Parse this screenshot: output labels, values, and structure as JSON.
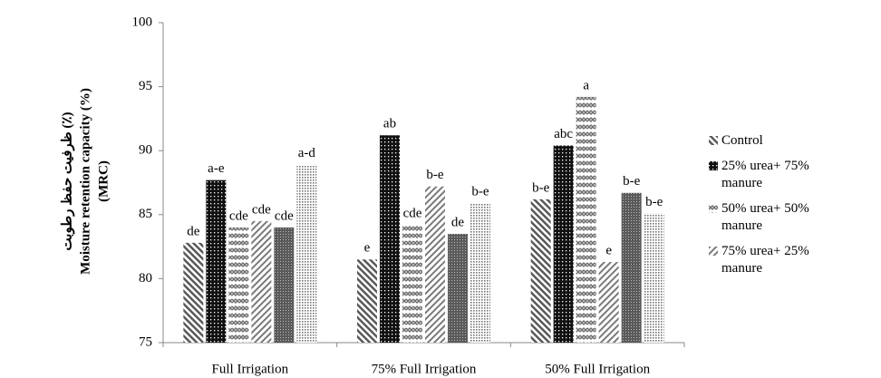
{
  "chart_data": {
    "type": "bar",
    "y_label": [
      "ظرفیت حفظ رطوبت (٪)",
      "Moisture retention capacity (%)",
      "(MRC)"
    ],
    "categories": [
      "Full Irrigation",
      "75% Full Irrigation",
      "50% Full Irrigation"
    ],
    "series": [
      {
        "name": "Control",
        "color": "#595959",
        "values": [
          82.8,
          81.5,
          86.2
        ],
        "labels": [
          "de",
          "e",
          "b-e"
        ]
      },
      {
        "name": "25% urea+ 75% manure",
        "color": "#111111",
        "values": [
          87.7,
          91.2,
          90.4
        ],
        "labels": [
          "a-e",
          "ab",
          "abc"
        ]
      },
      {
        "name": "50% urea+ 50% manure",
        "color": "#6e6e6e",
        "values": [
          84.0,
          84.2,
          94.2
        ],
        "labels": [
          "cde",
          "cde",
          "a"
        ]
      },
      {
        "name": "75% urea+ 25% manure",
        "color": "#7a7a7a",
        "values": [
          84.5,
          87.2,
          81.3
        ],
        "labels": [
          "cde",
          "b-e",
          "e"
        ]
      },
      {
        "color": "#5a5a5a",
        "values": [
          84.0,
          83.5,
          86.7
        ],
        "labels": [
          "cde",
          "de",
          "b-e"
        ]
      },
      {
        "color": "#777777",
        "values": [
          88.9,
          85.9,
          85.1
        ],
        "labels": [
          "a-d",
          "b-e",
          "b-e"
        ]
      }
    ],
    "ylim": [
      75,
      100
    ],
    "yticks": [
      75,
      80,
      85,
      90,
      95,
      100
    ],
    "grid": false,
    "legend": "right"
  }
}
